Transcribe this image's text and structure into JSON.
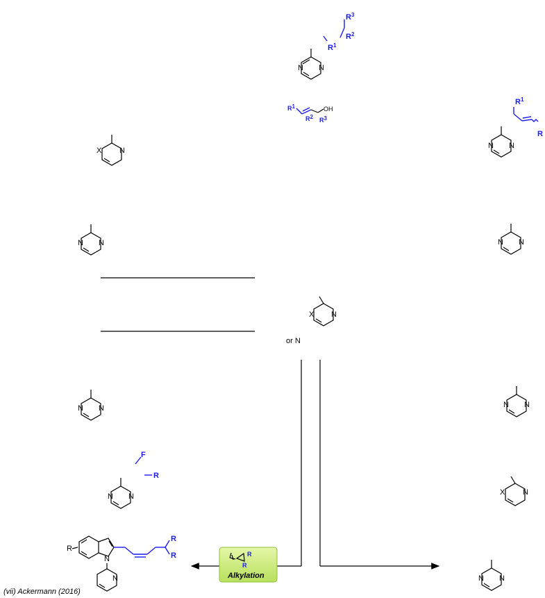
{
  "atoms": {
    "N": "N",
    "X": "X",
    "R": "R",
    "F": "F",
    "OH": "OH",
    "R1": "R",
    "R2": "R",
    "R3": "R",
    "sup1": "1",
    "sup2": "2",
    "sup3": "3"
  },
  "center": {
    "or_n": "or N"
  },
  "reagent_badge": {
    "label": "Alkylation",
    "color": "#c9ec7a"
  },
  "caption": {
    "text": "(vii) Ackermann (2016)"
  },
  "colors": {
    "substituent": "#1a1aee"
  }
}
